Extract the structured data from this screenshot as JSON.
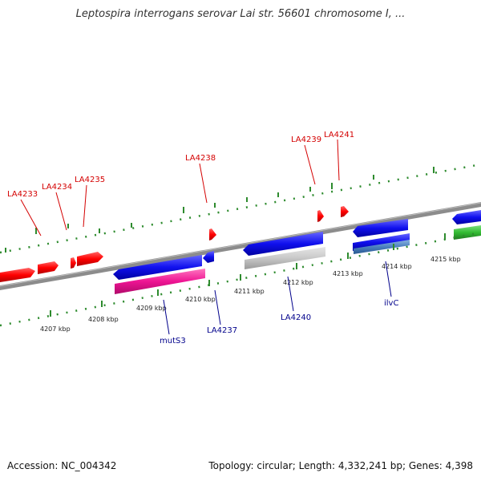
{
  "title": "Leptospira interrogans serovar Lai str. 56601 chromosome I, ...",
  "footer": {
    "accession": "Accession: NC_004342",
    "topology": "Topology: circular; Length: 4,332,241 bp; Genes: 4,398"
  },
  "scale_labels": [
    "4207 kbp",
    "4208 kbp",
    "4209 kbp",
    "4210 kbp",
    "4211 kbp",
    "4212 kbp",
    "4213 kbp",
    "4214 kbp",
    "4215 kbp"
  ],
  "forward_gene_labels": [
    "LA4233",
    "LA4234",
    "LA4235",
    "LA4238",
    "LA4239",
    "LA4241"
  ],
  "reverse_gene_labels": [
    "mutS3",
    "LA4237",
    "LA4240",
    "ilvC"
  ],
  "colors": {
    "forward_strand": "#ff0000",
    "reverse_strand": "#0000ff",
    "rna_feature": "#ff1493",
    "pseudo_feature": "#c0c0c0",
    "other_feature": "#33bb33",
    "backbone": "#888888",
    "tick": "#2e8b2e"
  }
}
